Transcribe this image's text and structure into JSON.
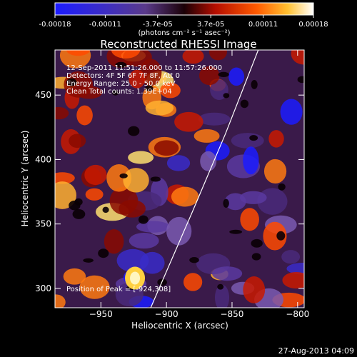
{
  "colorbar": {
    "tick_labels": [
      "-0.00018",
      "-0.00011",
      "-3.7e-05",
      "3.7e-05",
      "0.00011",
      "0.00018"
    ],
    "tick_values": [
      -0.00018,
      -0.00011,
      -3.7e-05,
      3.7e-05,
      0.00011,
      0.00018
    ],
    "range": [
      -0.00018,
      0.00018
    ],
    "units_label": "(photons cm⁻² s⁻¹ asec⁻²)"
  },
  "chart_data": {
    "type": "heatmap",
    "title": "Reconstructed RHESSI Image",
    "xlabel": "Heliocentric X (arcsec)",
    "ylabel": "Heliocentric Y (arcsec)",
    "xlim": [
      -985,
      -795
    ],
    "ylim": [
      285,
      485
    ],
    "x_ticks": [
      -950,
      -900,
      -850,
      -800
    ],
    "x_tick_labels": [
      "−950",
      "−900",
      "−850",
      "−800"
    ],
    "y_ticks": [
      300,
      350,
      400,
      450
    ],
    "y_tick_labels": [
      "300",
      "350",
      "400",
      "450"
    ],
    "annotations": [
      "12-Sep-2011 11:51:26.000 to 11:57:26.000",
      "Detectors: 4F 5F 6F 7F 8F, Att 0",
      "Energy Range: 25.0 - 50.0 keV",
      "Clean    Total counts: 1.39E+04"
    ],
    "peak_label": "Position of Peak = [-924,308]",
    "peak_position": [
      -924,
      308
    ],
    "limb_curve": [
      [
        -912,
        285
      ],
      [
        -880,
        360
      ],
      [
        -855,
        420
      ],
      [
        -830,
        485
      ]
    ],
    "grid": false
  },
  "footer": {
    "timestamp": "27-Aug-2013 04:09"
  },
  "colors": {
    "background": "#000000",
    "text": "#ffffff",
    "limb": "#ffffff"
  }
}
